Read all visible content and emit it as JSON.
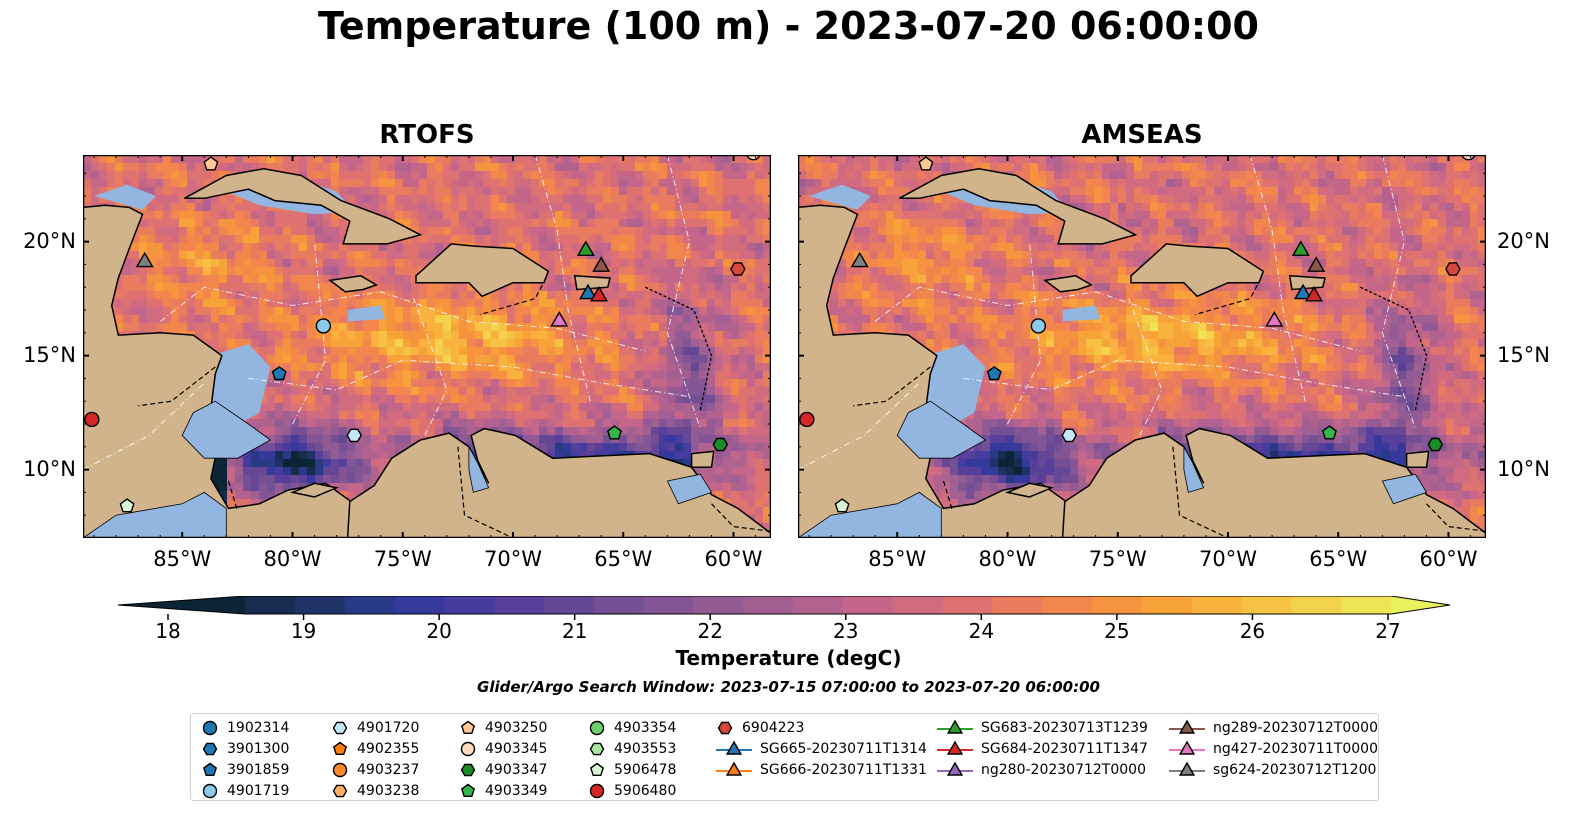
{
  "figure_title": "Temperature (100 m) - 2023-07-20 06:00:00",
  "panels": [
    {
      "title": "RTOFS"
    },
    {
      "title": "AMSEAS"
    }
  ],
  "axes": {
    "x_ticks": [
      "85°W",
      "80°W",
      "75°W",
      "70°W",
      "65°W",
      "60°W"
    ],
    "x_tick_values": [
      -85,
      -80,
      -75,
      -70,
      -65,
      -60
    ],
    "y_ticks": [
      "20°N",
      "15°N",
      "10°N"
    ],
    "y_tick_values": [
      20,
      15,
      10
    ],
    "lon_range": [
      -89.5,
      -58.3
    ],
    "lat_range": [
      7,
      23.8
    ]
  },
  "colorbar": {
    "label": "Temperature (degC)",
    "ticks": [
      "18",
      "19",
      "20",
      "21",
      "22",
      "23",
      "24",
      "25",
      "26",
      "27"
    ],
    "range": [
      18,
      27
    ],
    "extend": "both",
    "colors": [
      "#0b2436",
      "#182c50",
      "#1e3268",
      "#283a86",
      "#35399c",
      "#463c9f",
      "#573f9b",
      "#664795",
      "#744f94",
      "#835594",
      "#925b93",
      "#a15f92",
      "#b2628f",
      "#c4668a",
      "#d16b80",
      "#de7270",
      "#e97b5e",
      "#f2864d",
      "#f6933f",
      "#f8a23a",
      "#f8b23d",
      "#f6c243",
      "#f3d34b",
      "#eee454",
      "#e8f25c"
    ]
  },
  "search_window": "Glider/Argo Search Window: 2023-07-15 07:00:00 to 2023-07-20 06:00:00",
  "legend": [
    [
      {
        "label": "1902314",
        "marker": "circle",
        "color": "#1f77b4"
      },
      {
        "label": "3901300",
        "marker": "hexagon",
        "color": "#1f77b4"
      },
      {
        "label": "3901859",
        "marker": "pentagon",
        "color": "#1f77b4"
      },
      {
        "label": "4901719",
        "marker": "circle",
        "color": "#8ec9ec"
      }
    ],
    [
      {
        "label": "4901720",
        "marker": "hexagon",
        "color": "#c5e6f7"
      },
      {
        "label": "4902355",
        "marker": "pentagon",
        "color": "#ff7f0e"
      },
      {
        "label": "4903237",
        "marker": "circle",
        "color": "#ff8c2a"
      },
      {
        "label": "4903238",
        "marker": "hexagon",
        "color": "#ffb067"
      }
    ],
    [
      {
        "label": "4903250",
        "marker": "pentagon",
        "color": "#ffc896"
      },
      {
        "label": "4903345",
        "marker": "circle",
        "color": "#ffdcbc"
      },
      {
        "label": "4903347",
        "marker": "hexagon",
        "color": "#1a8c28"
      },
      {
        "label": "4903349",
        "marker": "pentagon",
        "color": "#35b54a"
      }
    ],
    [
      {
        "label": "4903354",
        "marker": "circle",
        "color": "#6fcf6f"
      },
      {
        "label": "4903553",
        "marker": "hexagon",
        "color": "#a8e6a0"
      },
      {
        "label": "5906478",
        "marker": "pentagon",
        "color": "#d7f5cf"
      },
      {
        "label": "5906480",
        "marker": "circle",
        "color": "#d62728"
      }
    ],
    [
      {
        "label": "6904223",
        "marker": "hexagon",
        "color": "#d9473c"
      },
      {
        "label": "SG665-20230711T1314",
        "marker": "triangle-line",
        "color": "#1f77b4"
      },
      {
        "label": "SG666-20230711T1331",
        "marker": "triangle-line",
        "color": "#ff7f0e"
      }
    ],
    [
      {
        "label": "SG683-20230713T1239",
        "marker": "triangle-line",
        "color": "#2ca02c"
      },
      {
        "label": "SG684-20230711T1347",
        "marker": "triangle-line",
        "color": "#d62728"
      },
      {
        "label": "ng280-20230712T0000",
        "marker": "triangle-line",
        "color": "#9467bd"
      }
    ],
    [
      {
        "label": "ng289-20230712T0000",
        "marker": "triangle-line",
        "color": "#8c564b"
      },
      {
        "label": "ng427-20230711T0000",
        "marker": "triangle-line",
        "color": "#e377c2"
      },
      {
        "label": "sg624-20230712T1200",
        "marker": "triangle-line",
        "color": "#7f7f7f"
      }
    ]
  ],
  "observations": [
    {
      "id": "4901719",
      "lon": -78.6,
      "lat": 16.3
    },
    {
      "id": "4901720",
      "lon": -77.2,
      "lat": 11.5
    },
    {
      "id": "3901859",
      "lon": -80.6,
      "lat": 14.2
    },
    {
      "id": "5906480",
      "lon": -89.1,
      "lat": 12.2
    },
    {
      "id": "5906478",
      "lon": -87.5,
      "lat": 8.4
    },
    {
      "id": "4903349",
      "lon": -65.4,
      "lat": 11.6
    },
    {
      "id": "4903347",
      "lon": -60.6,
      "lat": 11.1
    },
    {
      "id": "6904223",
      "lon": -59.8,
      "lat": 18.8
    },
    {
      "id": "4903250",
      "lon": -83.7,
      "lat": 23.4
    },
    {
      "id": "4903345",
      "lon": -59.1,
      "lat": 23.9
    },
    {
      "id": "SG683-20230713T1239",
      "lon": -66.7,
      "lat": 19.6
    },
    {
      "id": "SG665-20230711T1314",
      "lon": -66.6,
      "lat": 17.7
    },
    {
      "id": "SG684-20230711T1347",
      "lon": -66.1,
      "lat": 17.6
    },
    {
      "id": "ng289-20230712T0000",
      "lon": -66.0,
      "lat": 18.9
    },
    {
      "id": "ng427-20230711T0000",
      "lon": -67.9,
      "lat": 16.5
    },
    {
      "id": "sg624-20230712T1200",
      "lon": -86.7,
      "lat": 19.1
    }
  ],
  "colors": {
    "land": "#d2b48c",
    "shallow_water": "#93b6e0",
    "coast": "#000000"
  }
}
